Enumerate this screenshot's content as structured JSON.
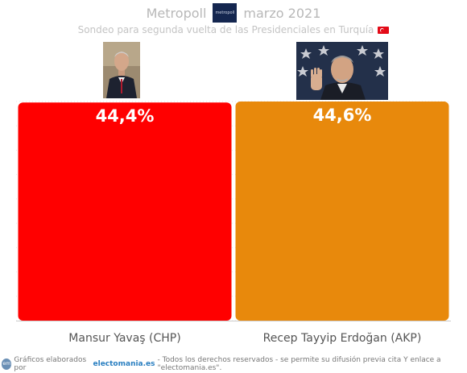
{
  "header": {
    "pollster": "Metropoll",
    "logo_text": "metropoll",
    "date": "marzo 2021",
    "subtitle": "Sondeo para segunda vuelta de las Presidenciales en Turquía"
  },
  "colors": {
    "chp": "#ff0000",
    "akp": "#e8890c",
    "value_label": "#ffffff",
    "candidate_label": "#555555"
  },
  "chart_data": {
    "type": "bar",
    "categories": [
      "Mansur Yavaş (CHP)",
      "Recep Tayyip Erdoğan (AKP)"
    ],
    "values": [
      44.4,
      44.6
    ],
    "value_labels": [
      "44,4%",
      "44,6%"
    ],
    "title": "Sondeo para segunda vuelta de las Presidenciales en Turquía",
    "xlabel": "",
    "ylabel": "",
    "ylim": [
      0,
      44.6
    ],
    "grid": true
  },
  "footer": {
    "logo_text": "em",
    "prefix": "Gráficos elaborados por",
    "site": "electomania.es",
    "suffix": "- Todos los derechos reservados - se permite su difusión previa cita Y enlace a \"electomania.es\"."
  }
}
